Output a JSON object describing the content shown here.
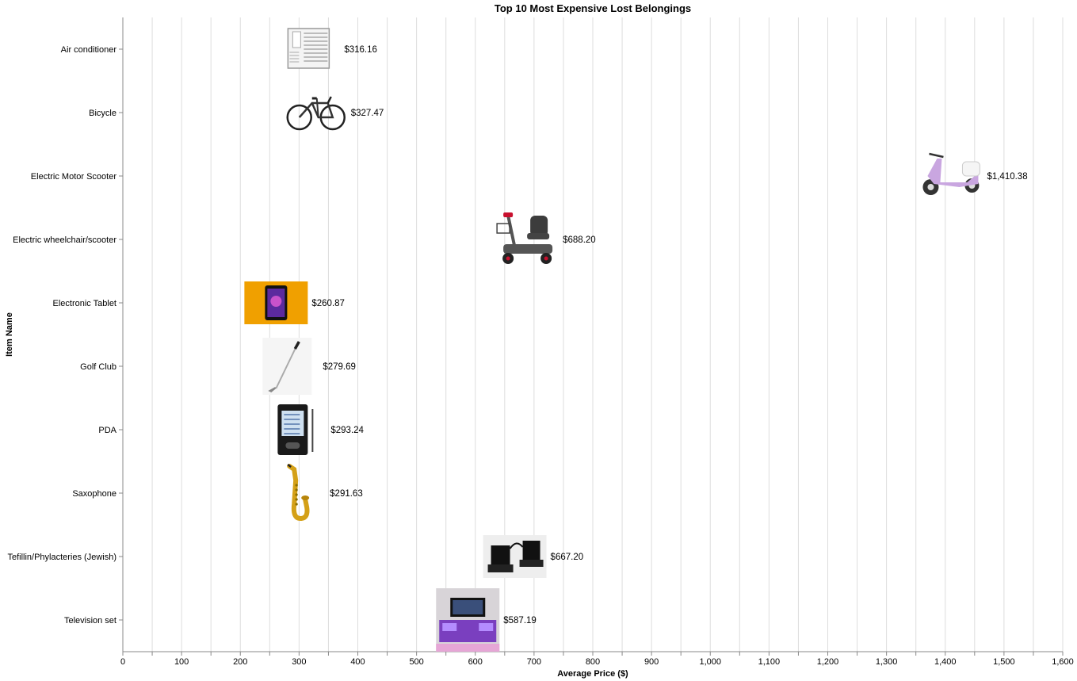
{
  "chart_data": {
    "type": "scatter",
    "title": "Top 10 Most Expensive Lost Belongings",
    "xlabel": "Average Price ($)",
    "ylabel": "Item Name",
    "xlim": [
      0,
      1600
    ],
    "x_ticks": [
      "0",
      "100",
      "200",
      "300",
      "400",
      "500",
      "600",
      "700",
      "800",
      "900",
      "1,000",
      "1,100",
      "1,200",
      "1,300",
      "1,400",
      "1,500",
      "1,600"
    ],
    "grid": true,
    "categories": [
      "Air conditioner",
      "Bicycle",
      "Electric Motor Scooter",
      "Electric wheelchair/scooter",
      "Electronic Tablet",
      "Golf Club",
      "PDA",
      "Saxophone",
      "Tefillin/Phylacteries (Jewish)",
      "Television set"
    ],
    "values": [
      316.16,
      327.47,
      1410.38,
      688.2,
      260.87,
      279.69,
      293.24,
      291.63,
      667.2,
      587.19
    ],
    "value_labels": [
      "$316.16",
      "$327.47",
      "$1,410.38",
      "$688.20",
      "$260.87",
      "$279.69",
      "$293.24",
      "$291.63",
      "$667.20",
      "$587.19"
    ],
    "marks": "product-images",
    "icons": [
      "air-conditioner-icon",
      "bicycle-icon",
      "motor-scooter-icon",
      "mobility-scooter-icon",
      "tablet-icon",
      "golf-club-icon",
      "pda-icon",
      "saxophone-icon",
      "tefillin-icon",
      "television-icon"
    ],
    "colors": {
      "grid": "#dddddd",
      "axis": "#888888",
      "tablet_bg": "#f0a000",
      "scooter": "#c9a6e0",
      "saxophone": "#d4a017",
      "tv_cabinet": "#7a3fbf"
    }
  }
}
